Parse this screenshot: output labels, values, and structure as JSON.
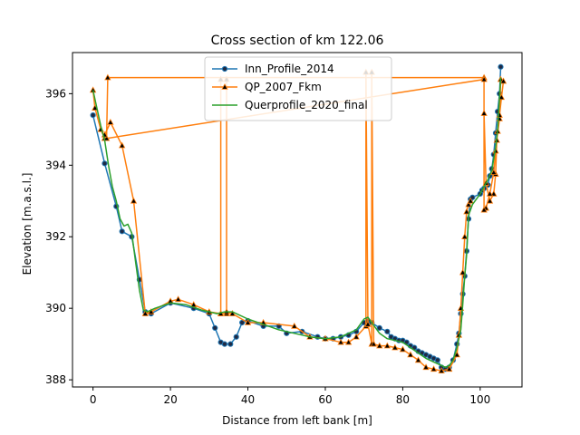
{
  "chart_data": {
    "type": "line",
    "title": "Cross section of km 122.06",
    "xlabel": "Distance from left bank [m]",
    "ylabel": "Elevation [m.a.s.l.]",
    "xlim": [
      -5.3,
      110.8
    ],
    "ylim": [
      387.8,
      397.15
    ],
    "xticks": [
      0,
      20,
      40,
      60,
      80,
      100
    ],
    "yticks": [
      388,
      390,
      392,
      394,
      396
    ],
    "grid": false,
    "legend_position": "top-center",
    "series": [
      {
        "name": "Inn_Profile_2014",
        "color": "#1f77b4",
        "marker": "circle",
        "marker_fill": "#1f2a44",
        "x": [
          0,
          3,
          6,
          7.5,
          10,
          12,
          13.5,
          15,
          20,
          26,
          30,
          31.5,
          33,
          34,
          35.5,
          37,
          38.5,
          40,
          44,
          48,
          50,
          54,
          58,
          60,
          62,
          64,
          66,
          68,
          70,
          71,
          72,
          74,
          76,
          77,
          78,
          79,
          80,
          81,
          82,
          83,
          84,
          85,
          86,
          87,
          88,
          89,
          90,
          91,
          92,
          93,
          94,
          94.5,
          95,
          95.5,
          96,
          96.5,
          97,
          97.5,
          98,
          100,
          100.5,
          101,
          102,
          102.5,
          103,
          103.5,
          104,
          104.5,
          105,
          105.3
        ],
        "y": [
          395.4,
          394.05,
          392.85,
          392.15,
          392.0,
          390.8,
          389.9,
          389.85,
          390.15,
          390.0,
          389.85,
          389.45,
          389.05,
          389.0,
          389.0,
          389.2,
          389.6,
          389.65,
          389.5,
          389.5,
          389.3,
          389.35,
          389.2,
          389.15,
          389.15,
          389.2,
          389.25,
          389.35,
          389.6,
          389.65,
          389.6,
          389.45,
          389.35,
          389.2,
          389.15,
          389.1,
          389.1,
          389.05,
          388.95,
          388.9,
          388.8,
          388.75,
          388.7,
          388.65,
          388.6,
          388.55,
          388.35,
          388.3,
          388.35,
          388.55,
          389.0,
          389.3,
          389.85,
          390.4,
          390.9,
          391.6,
          392.5,
          393.05,
          393.1,
          393.2,
          393.3,
          393.35,
          393.45,
          393.7,
          393.9,
          394.3,
          394.9,
          395.5,
          396.0,
          396.75
        ]
      },
      {
        "name": "QP_2007_Fkm",
        "color": "#ff7f0e",
        "marker": "triangle",
        "marker_fill": "#000000",
        "x": [
          0,
          0.5,
          2,
          3,
          3.5,
          3.8,
          101,
          101,
          101.5,
          102.5,
          103.5,
          104,
          104.3,
          105,
          105.3,
          106,
          105.5,
          105,
          104.5,
          104,
          103.5,
          102.5,
          101.5,
          101,
          101,
          3.5,
          3,
          4.5,
          7.5,
          10.5,
          13.5,
          15,
          20,
          22,
          26,
          30,
          33,
          33,
          33,
          34.5,
          34.5,
          34.5,
          36,
          40,
          44,
          52,
          56,
          60,
          64,
          66,
          68,
          70.5,
          70.5,
          71,
          72,
          72,
          72.5,
          74,
          76,
          78,
          80,
          82,
          84,
          86,
          88,
          90,
          92,
          94,
          94.5,
          95,
          95.5,
          96,
          96.5,
          97,
          97.5
        ],
        "y": [
          396.1,
          395.6,
          395.0,
          394.75,
          394.75,
          396.45,
          396.45,
          395.45,
          393.5,
          393.0,
          393.2,
          393.75,
          394.7,
          395.3,
          396.4,
          396.35,
          395.9,
          395.4,
          394.95,
          394.4,
          393.8,
          393.2,
          392.8,
          392.75,
          396.4,
          394.75,
          394.85,
          395.2,
          394.55,
          393.0,
          389.85,
          389.9,
          390.2,
          390.25,
          390.1,
          389.9,
          389.85,
          396.4,
          389.85,
          389.85,
          396.4,
          389.9,
          389.85,
          389.6,
          389.6,
          389.5,
          389.2,
          389.15,
          389.05,
          389.05,
          389.2,
          389.5,
          396.6,
          389.55,
          389.0,
          396.6,
          389.0,
          388.95,
          388.95,
          388.9,
          388.85,
          388.7,
          388.55,
          388.35,
          388.3,
          388.25,
          388.3,
          388.7,
          389.25,
          390.0,
          391.0,
          392.0,
          392.7,
          392.9,
          393.0
        ]
      },
      {
        "name": "Querprofile_2020_final",
        "color": "#2ca02c",
        "marker": "none",
        "x": [
          0,
          1,
          2,
          3,
          4,
          5,
          6,
          7,
          8,
          9,
          10,
          11,
          12,
          13,
          14,
          16,
          20,
          24,
          28,
          32,
          34,
          36,
          40,
          44,
          48,
          52,
          56,
          60,
          64,
          68,
          70,
          71,
          72,
          74,
          76,
          78,
          80,
          82,
          84,
          86,
          88,
          90,
          91,
          92,
          93,
          94,
          95,
          95.5,
          96,
          96.5,
          97,
          97.5,
          98,
          99,
          100,
          101,
          102,
          103,
          104,
          104.5,
          105,
          105.3
        ],
        "y": [
          396.1,
          395.6,
          395.1,
          394.7,
          394.0,
          393.4,
          393.0,
          392.5,
          392.3,
          392.35,
          392.1,
          391.3,
          390.5,
          389.95,
          389.9,
          390.0,
          390.15,
          390.1,
          389.95,
          389.85,
          389.9,
          389.9,
          389.7,
          389.55,
          389.4,
          389.3,
          389.2,
          389.15,
          389.2,
          389.4,
          389.7,
          389.75,
          389.6,
          389.3,
          389.15,
          389.1,
          389.05,
          388.9,
          388.75,
          388.6,
          388.5,
          388.4,
          388.35,
          388.4,
          388.55,
          388.9,
          389.4,
          390.1,
          390.9,
          391.5,
          392.6,
          392.75,
          392.9,
          393.05,
          393.2,
          393.4,
          393.6,
          393.85,
          394.5,
          395.0,
          395.9,
          396.45
        ]
      }
    ]
  }
}
